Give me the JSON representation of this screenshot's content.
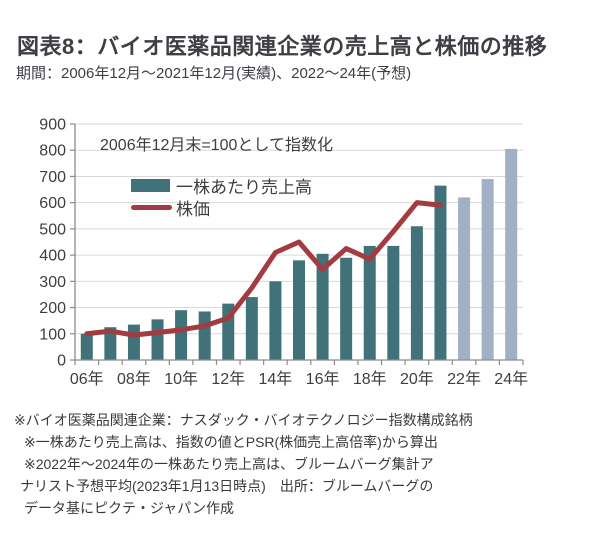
{
  "title": "図表8：バイオ医薬品関連企業の売上高と株価の推移",
  "subtitle": "期間：2006年12月～2021年12月(実績)、2022～24年(予想)",
  "chart_data": {
    "type": "bar+line",
    "annotation": "2006年12月末=100として指数化",
    "categories": [
      "2006",
      "2007",
      "2008",
      "2009",
      "2010",
      "2011",
      "2012",
      "2013",
      "2014",
      "2015",
      "2016",
      "2017",
      "2018",
      "2019",
      "2020",
      "2021",
      "2022",
      "2023",
      "2024"
    ],
    "x_tick_labels": [
      "06年",
      "08年",
      "10年",
      "12年",
      "14年",
      "16年",
      "18年",
      "20年",
      "22年",
      "24年"
    ],
    "y_tick_values": [
      0,
      100,
      200,
      300,
      400,
      500,
      600,
      700,
      800,
      900
    ],
    "ylim": [
      0,
      900
    ],
    "grid": "horizontal",
    "legend_position": "top-left-inside",
    "series": [
      {
        "name": "一株あたり売上高",
        "type": "bar",
        "values": [
          100,
          125,
          135,
          155,
          190,
          185,
          215,
          240,
          300,
          380,
          405,
          390,
          435,
          435,
          510,
          665,
          620,
          690,
          805
        ],
        "forecast_start_index": 16
      },
      {
        "name": "株価",
        "type": "line",
        "values": [
          100,
          110,
          95,
          105,
          115,
          130,
          160,
          275,
          410,
          450,
          345,
          425,
          385,
          490,
          600,
          590
        ]
      }
    ],
    "colors": {
      "bar_actual": "#417179",
      "bar_forecast": "#9fb0c7",
      "line": "#a23c41",
      "grid": "#d9d9d9",
      "axis": "#8c8c8c",
      "text": "#3e3e42"
    }
  },
  "footnotes": [
    "※バイオ医薬品関連企業：ナスダック・バイオテクノロジー指数構成銘柄",
    "※一株あたり売上高は、指数の値とPSR(株価売上高倍率)から算出",
    "※2022年～2024年の一株あたり売上高は、ブルームバーグ集計ア",
    "ナリスト予想平均(2023年1月13日時点)　出所：ブルームバーグの",
    "データ基にピクテ・ジャパン作成"
  ]
}
